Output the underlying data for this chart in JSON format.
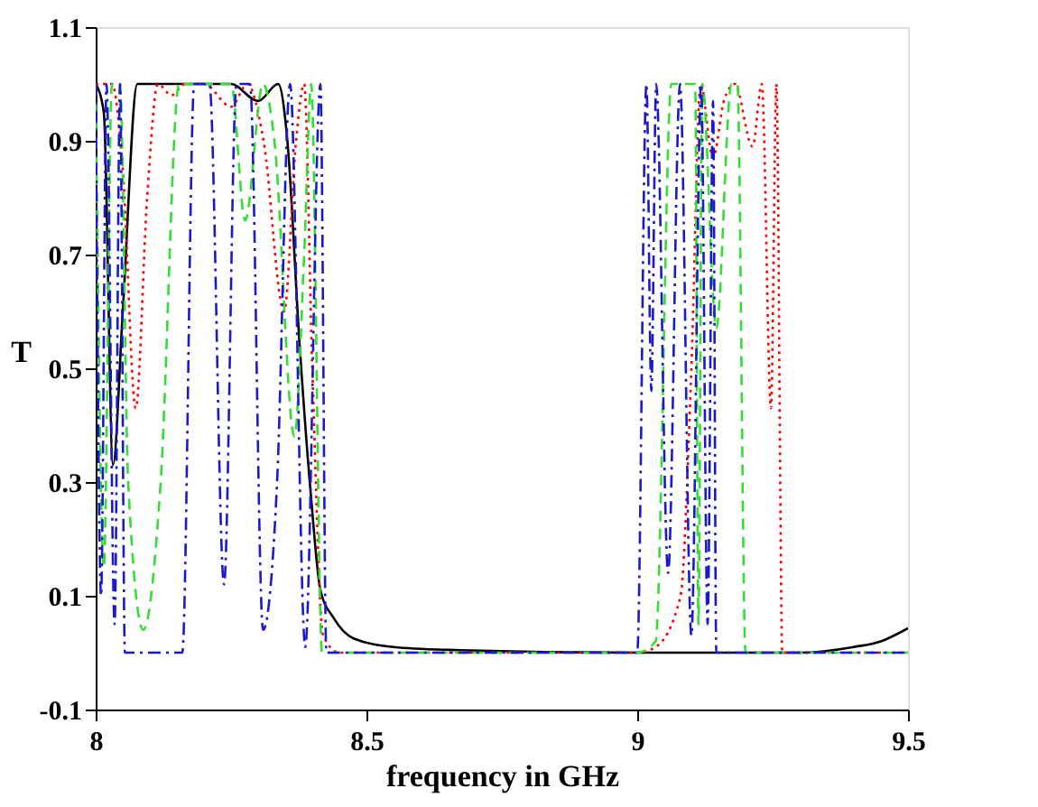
{
  "chart_data": {
    "type": "line",
    "xlabel": "frequency in GHz",
    "ylabel": "T",
    "xlim": [
      8,
      9.5
    ],
    "ylim": [
      -0.1,
      1.1
    ],
    "xticks": [
      8,
      8.5,
      9,
      9.5
    ],
    "yticks": [
      -0.1,
      0.1,
      0.3,
      0.5,
      0.7,
      0.9,
      1.1
    ],
    "grid": false,
    "marker": "none",
    "series": [
      {
        "color": "#000000",
        "line_style": "solid",
        "x": [
          8.0,
          8.015,
          8.032,
          8.05,
          8.077,
          8.25,
          8.3,
          8.337,
          8.354,
          8.376,
          8.398,
          8.415,
          8.44,
          8.476,
          8.55,
          8.65,
          9.0,
          9.3,
          9.4,
          9.45,
          9.5
        ],
        "values": [
          1.0,
          0.95,
          0.33,
          0.6,
          1.0,
          1.0,
          0.97,
          1.0,
          0.9,
          0.55,
          0.27,
          0.11,
          0.06,
          0.025,
          0.01,
          0.005,
          0.0,
          0.0,
          0.01,
          0.02,
          0.043
        ]
      },
      {
        "color": "#ff0000",
        "line_style": "dotted",
        "x": [
          8.0,
          8.03,
          8.05,
          8.074,
          8.095,
          8.115,
          8.14,
          8.165,
          8.2,
          8.25,
          8.28,
          8.31,
          8.348,
          8.37,
          8.385,
          8.4,
          8.42,
          8.45,
          9.0,
          9.034,
          9.08,
          9.1,
          9.117,
          9.14,
          9.16,
          9.18,
          9.213,
          9.23,
          9.247,
          9.257,
          9.268,
          9.5
        ],
        "values": [
          1.0,
          1.0,
          0.85,
          0.43,
          0.8,
          1.0,
          0.98,
          1.0,
          1.0,
          0.96,
          1.0,
          0.9,
          0.6,
          0.9,
          1.0,
          0.5,
          0.03,
          0.0,
          0.0,
          0.01,
          0.1,
          0.5,
          1.0,
          0.87,
          0.97,
          1.0,
          0.89,
          1.0,
          0.43,
          1.0,
          0.0,
          0.0
        ]
      },
      {
        "color": "#33dd33",
        "line_style": "dashed",
        "x": [
          8.0,
          8.015,
          8.03,
          8.045,
          8.06,
          8.088,
          8.12,
          8.154,
          8.25,
          8.276,
          8.309,
          8.33,
          8.367,
          8.385,
          8.398,
          8.418,
          8.5,
          9.0,
          9.034,
          9.063,
          9.085,
          9.107,
          9.113,
          9.12,
          9.146,
          9.174,
          9.185,
          9.2,
          9.5
        ],
        "values": [
          1.0,
          0.15,
          1.0,
          1.0,
          0.3,
          0.04,
          0.3,
          1.0,
          1.0,
          0.76,
          1.0,
          0.9,
          0.38,
          0.7,
          1.0,
          0.0,
          0.0,
          0.0,
          0.02,
          1.0,
          1.0,
          1.0,
          0.05,
          1.0,
          0.57,
          1.0,
          1.0,
          0.0,
          0.0
        ]
      },
      {
        "color": "#1a1acc",
        "line_style": "dashdot",
        "x": [
          8.0,
          8.01,
          8.02,
          8.035,
          8.045,
          8.054,
          8.1,
          8.16,
          8.182,
          8.21,
          8.237,
          8.26,
          8.285,
          8.309,
          8.335,
          8.359,
          8.387,
          8.415,
          8.426,
          8.5,
          9.0,
          9.017,
          9.026,
          9.035,
          9.057,
          9.079,
          9.1,
          9.118,
          9.13,
          9.14,
          9.146,
          9.5
        ],
        "values": [
          1.0,
          0.1,
          1.0,
          0.05,
          1.0,
          0.0,
          0.0,
          0.0,
          1.0,
          1.0,
          0.12,
          1.0,
          1.0,
          0.04,
          0.3,
          1.0,
          0.01,
          1.0,
          0.0,
          0.0,
          0.0,
          1.0,
          0.46,
          1.0,
          0.14,
          1.0,
          0.03,
          1.0,
          0.05,
          0.97,
          0.0,
          0.0
        ]
      }
    ]
  }
}
